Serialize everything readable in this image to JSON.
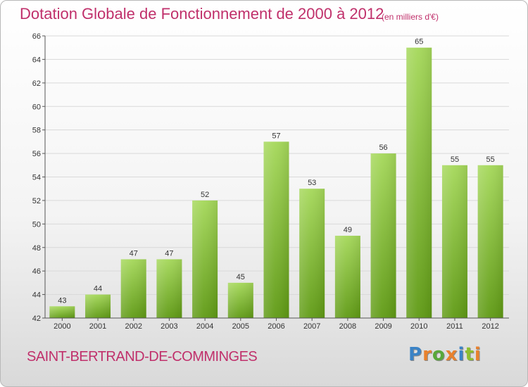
{
  "header": {
    "title": "Dotation Globale de Fonctionnement de 2000 à 2012",
    "subtitle": "(en milliers d'€)"
  },
  "footer": {
    "commune": "SAINT-BERTRAND-DE-COMMINGES",
    "logo": {
      "letters": [
        "P",
        "r",
        "o",
        "x",
        "i",
        "t",
        "i"
      ],
      "colors": [
        "#3b83c6",
        "#e8812d",
        "#58a83a",
        "#e8812d",
        "#3b83c6",
        "#8dbf2e",
        "#e8812d"
      ]
    }
  },
  "chart_data": {
    "type": "bar",
    "title": "Dotation Globale de Fonctionnement de 2000 à 2012",
    "subtitle": "(en milliers d'€)",
    "categories": [
      "2000",
      "2001",
      "2002",
      "2003",
      "2004",
      "2005",
      "2006",
      "2007",
      "2008",
      "2009",
      "2010",
      "2011",
      "2012"
    ],
    "values": [
      43,
      44,
      47,
      47,
      52,
      45,
      57,
      53,
      49,
      56,
      65,
      55,
      55
    ],
    "xlabel": "",
    "ylabel": "",
    "ylim": [
      42,
      66
    ],
    "yticks": [
      42,
      44,
      46,
      48,
      50,
      52,
      54,
      56,
      58,
      60,
      62,
      64,
      66
    ],
    "grid": "horizontal",
    "legend": "none",
    "colors": {
      "bar_light": "#a5d85a",
      "bar_dark": "#5f9a14",
      "grid": "#d9d9d9",
      "axis_text": "#333333"
    }
  }
}
